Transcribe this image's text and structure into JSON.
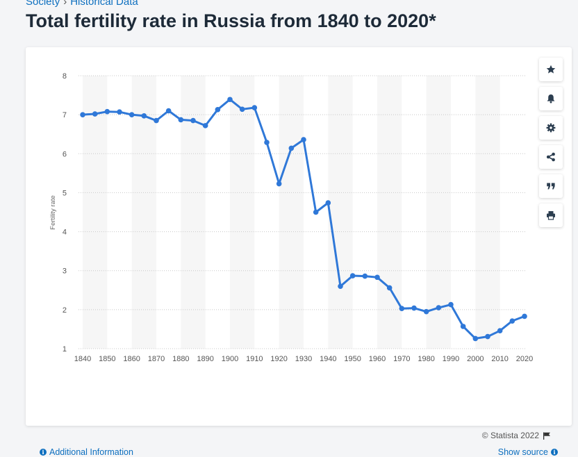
{
  "breadcrumb": {
    "items": [
      "Society",
      "Historical Data"
    ],
    "separator": "›"
  },
  "page_title": "Total fertility rate in Russia from 1840 to 2020*",
  "toolbar": {
    "buttons": [
      {
        "name": "favorite",
        "icon": "star-icon"
      },
      {
        "name": "notification",
        "icon": "bell-icon"
      },
      {
        "name": "settings",
        "icon": "gear-icon"
      },
      {
        "name": "share",
        "icon": "share-icon"
      },
      {
        "name": "cite",
        "icon": "quote-icon"
      },
      {
        "name": "print",
        "icon": "print-icon"
      }
    ]
  },
  "footer": {
    "copyright": "© Statista 2022",
    "additional_info": "Additional Information",
    "show_source": "Show source"
  },
  "colors": {
    "line": "#2f78d8",
    "link": "#0d6fbf",
    "title": "#1d2a38",
    "band": "#f6f6f6",
    "grid": "#c8c8c8"
  },
  "chart_data": {
    "type": "line",
    "title": "Total fertility rate in Russia from 1840 to 2020*",
    "xlabel": "",
    "ylabel": "Fertility rate",
    "ylim": [
      1,
      8
    ],
    "yticks": [
      1,
      2,
      3,
      4,
      5,
      6,
      7,
      8
    ],
    "xlim": [
      1840,
      2020
    ],
    "xticks": [
      1840,
      1850,
      1860,
      1870,
      1880,
      1890,
      1900,
      1910,
      1920,
      1930,
      1940,
      1950,
      1960,
      1970,
      1980,
      1990,
      2000,
      2010,
      2020
    ],
    "grid": "horizontal dotted",
    "series": [
      {
        "name": "Fertility rate",
        "x": [
          1840,
          1845,
          1850,
          1855,
          1860,
          1865,
          1870,
          1875,
          1880,
          1885,
          1890,
          1895,
          1900,
          1905,
          1910,
          1915,
          1920,
          1925,
          1930,
          1935,
          1940,
          1945,
          1950,
          1955,
          1960,
          1965,
          1970,
          1975,
          1980,
          1985,
          1990,
          1995,
          2000,
          2005,
          2010,
          2015,
          2020
        ],
        "values": [
          7.0,
          7.02,
          7.08,
          7.07,
          7.0,
          6.97,
          6.85,
          7.1,
          6.87,
          6.85,
          6.72,
          7.13,
          7.39,
          7.14,
          7.18,
          6.29,
          5.23,
          6.14,
          6.36,
          4.5,
          4.74,
          2.6,
          2.87,
          2.86,
          2.83,
          2.56,
          2.03,
          2.04,
          1.95,
          2.05,
          2.13,
          1.57,
          1.26,
          1.31,
          1.46,
          1.71,
          1.83
        ]
      }
    ]
  }
}
